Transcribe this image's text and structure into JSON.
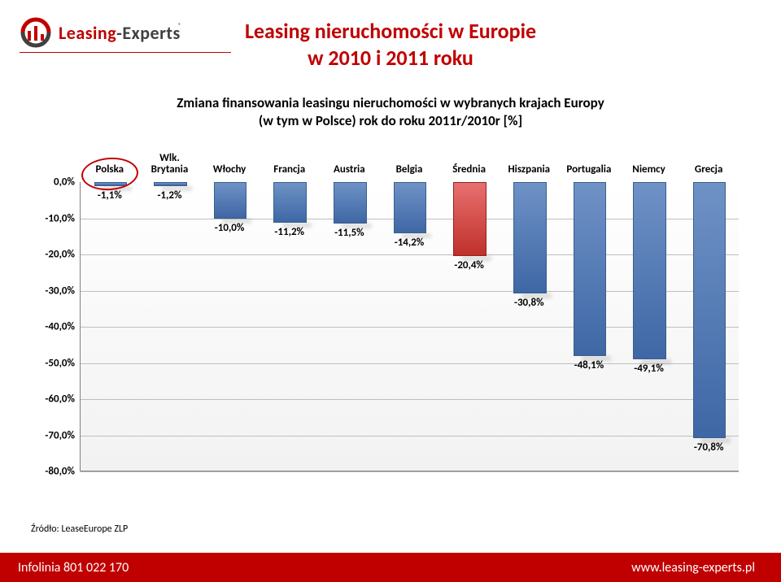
{
  "logo": {
    "leasing": "Leasing",
    "experts": "-Experts",
    "reg": "®"
  },
  "title_line1": "Leasing nieruchomości w Europie",
  "title_line2": "w 2010 i 2011 roku",
  "subtitle_line1": "Zmiana finansowania leasingu nieruchomości w wybranych krajach Europy",
  "subtitle_line2": "(w tym w Polsce) rok do roku 2011r/2010r [%]",
  "chart": {
    "type": "bar",
    "ylim": [
      -80,
      0
    ],
    "ytick_step": 10,
    "y_suffix": "%",
    "background_top": "#ffffff",
    "background_bottom": "#f2f2f2",
    "grid_color": "#bfbfbf",
    "axis_color": "#808080",
    "bar_fill_top": "#6f92c6",
    "bar_fill_bottom": "#3e67a5",
    "bar_border": "#3a5f8a",
    "highlight_fill_top": "#e87070",
    "highlight_fill_bottom": "#c0302a",
    "highlight_border": "#8f2222",
    "label_fontsize": 13,
    "bar_width_ratio": 0.55,
    "categories": [
      {
        "label": "Polska",
        "value": -1.1,
        "display": "-1,1%",
        "highlight": false,
        "ring": true
      },
      {
        "label": "Wlk.\nBrytania",
        "value": -1.2,
        "display": "-1,2%",
        "highlight": false
      },
      {
        "label": "Włochy",
        "value": -10.0,
        "display": "-10,0%",
        "highlight": false
      },
      {
        "label": "Francja",
        "value": -11.2,
        "display": "-11,2%",
        "highlight": false
      },
      {
        "label": "Austria",
        "value": -11.5,
        "display": "-11,5%",
        "highlight": false
      },
      {
        "label": "Belgia",
        "value": -14.2,
        "display": "-14,2%",
        "highlight": false
      },
      {
        "label": "Średnia",
        "value": -20.4,
        "display": "-20,4%",
        "highlight": true
      },
      {
        "label": "Hiszpania",
        "value": -30.8,
        "display": "-30,8%",
        "highlight": false
      },
      {
        "label": "Portugalia",
        "value": -48.1,
        "display": "-48,1%",
        "highlight": false
      },
      {
        "label": "Niemcy",
        "value": -49.1,
        "display": "-49,1%",
        "highlight": false
      },
      {
        "label": "Grecja",
        "value": -70.8,
        "display": "-70,8%",
        "highlight": false
      }
    ]
  },
  "source": "Źródło: LeaseEurope  ZLP",
  "footer": {
    "left": "Infolinia 801 022 170",
    "right": "www.leasing-experts.pl"
  }
}
